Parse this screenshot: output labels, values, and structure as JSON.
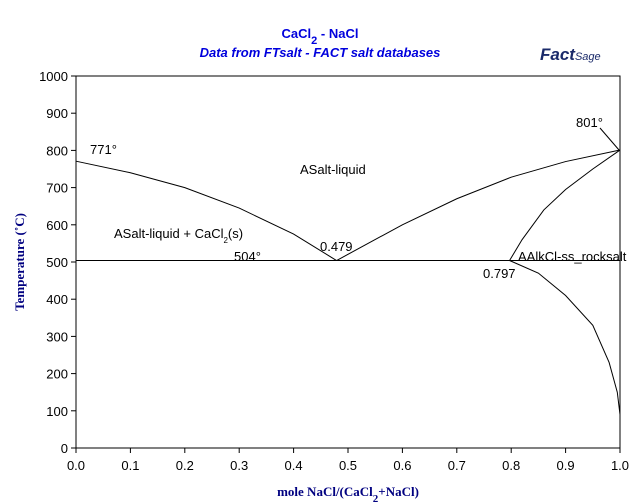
{
  "chart_data": {
    "type": "line",
    "title": [
      "CaCl",
      "2",
      " - NaCl"
    ],
    "subtitle": "Data from FTsalt - FACT salt databases",
    "logo": [
      "Fact",
      "Sage"
    ],
    "x_label": [
      "mole NaCl/(CaCl",
      "2",
      "+NaCl)"
    ],
    "y_label": "Temperature (˚C)",
    "xlim": [
      0,
      1
    ],
    "ylim": [
      0,
      1000
    ],
    "xticks": [
      {
        "value": 0,
        "label": "0.0"
      },
      0.1,
      0.2,
      0.3,
      0.4,
      0.5,
      0.6,
      0.7,
      0.8,
      0.9,
      {
        "value": 1,
        "label": "1.0"
      }
    ],
    "yticks": [
      0,
      100,
      200,
      300,
      400,
      500,
      600,
      700,
      800,
      900,
      1000
    ],
    "series": [
      {
        "color": "#000000",
        "x": [
          0,
          0.1,
          0.2,
          0.3,
          0.4,
          0.479
        ],
        "values": [
          771,
          740,
          700,
          645,
          575,
          504
        ]
      },
      {
        "color": "#000000",
        "x": [
          0.479,
          0.6,
          0.7,
          0.8,
          0.9,
          1.0
        ],
        "values": [
          504,
          600,
          670,
          728,
          770,
          801
        ]
      },
      {
        "color": "#000000",
        "x": [
          0.797,
          0.82,
          0.86,
          0.9,
          0.95,
          1.0
        ],
        "values": [
          504,
          560,
          640,
          695,
          750,
          801
        ]
      },
      {
        "color": "#000000",
        "x": [
          0.797,
          0.85,
          0.9,
          0.95,
          0.98,
          0.995,
          1.0
        ],
        "values": [
          504,
          470,
          410,
          330,
          230,
          150,
          90
        ]
      },
      {
        "color": "#000000",
        "x": [
          0,
          1
        ],
        "values": [
          504,
          504
        ]
      }
    ],
    "annotations": [
      [
        "771°"
      ],
      [
        "801°"
      ],
      [
        "504°"
      ],
      [
        "0.479"
      ],
      [
        "0.797"
      ],
      [
        "ASalt-liquid"
      ],
      [
        "ASalt-liquid + CaCl",
        "2",
        "(s)"
      ],
      [
        "AAlkCl-ss_rocksalt"
      ]
    ]
  }
}
